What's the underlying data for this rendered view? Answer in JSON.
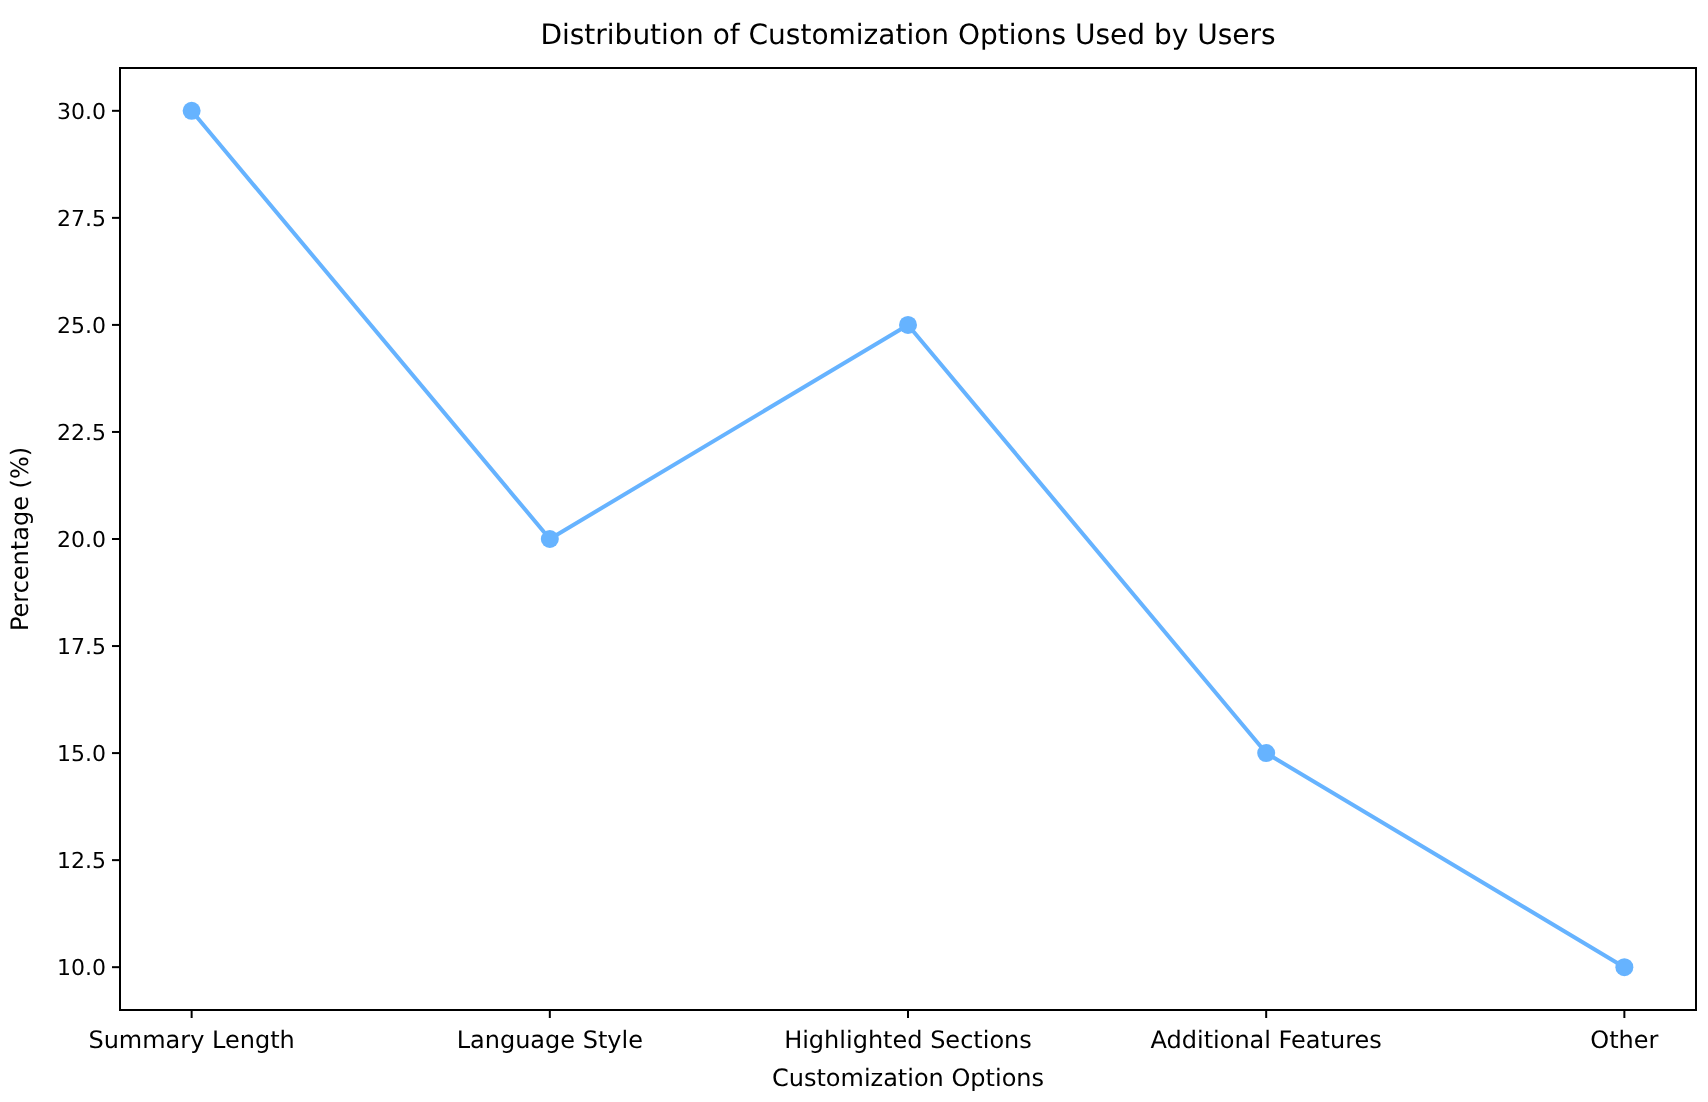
{
  "chart_data": {
    "type": "line",
    "title": "Distribution of Customization Options Used by Users",
    "xlabel": "Customization Options",
    "ylabel": "Percentage (%)",
    "categories": [
      "Summary Length",
      "Language Style",
      "Highlighted Sections",
      "Additional Features",
      "Other"
    ],
    "series": [
      {
        "color": "#66b3ff",
        "values": [
          30,
          20,
          25,
          15,
          10
        ]
      }
    ],
    "ylim": [
      9,
      31
    ],
    "yticks": [
      {
        "value": 10,
        "label": "10.0"
      },
      {
        "value": 12.5,
        "label": "12.5"
      },
      {
        "value": 15,
        "label": "15.0"
      },
      {
        "value": 17.5,
        "label": "17.5"
      },
      {
        "value": 20,
        "label": "20.0"
      },
      {
        "value": 22.5,
        "label": "22.5"
      },
      {
        "value": 25,
        "label": "25.0"
      },
      {
        "value": 27.5,
        "label": "27.5"
      },
      {
        "value": 30,
        "label": "30.0"
      }
    ],
    "marker": "circle",
    "line_style": "solid"
  }
}
